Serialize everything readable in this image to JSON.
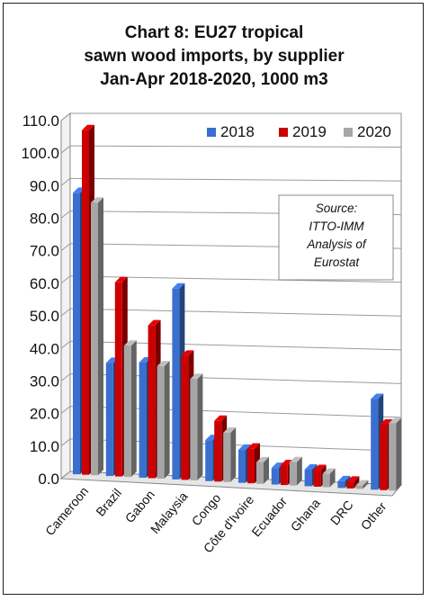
{
  "chart_data": {
    "type": "bar",
    "title": [
      "Chart 8: EU27 tropical",
      "sawn wood imports, by supplier",
      "Jan-Apr 2018-2020, 1000 m3"
    ],
    "categories": [
      "Cameroon",
      "Brazil",
      "Gabon",
      "Malaysia",
      "Congo",
      "Côte d'Ivoire",
      "Ecuador",
      "Ghana",
      "DRC",
      "Other"
    ],
    "series": [
      {
        "name": "2018",
        "color": "#3a6fcf",
        "values": [
          87.5,
          35.0,
          35.5,
          58.5,
          12.5,
          10.0,
          5.0,
          5.0,
          2.0,
          27.0
        ]
      },
      {
        "name": "2019",
        "color": "#cc0000",
        "values": [
          107.0,
          60.0,
          47.0,
          38.0,
          18.5,
          10.5,
          6.0,
          5.0,
          2.0,
          19.5
        ]
      },
      {
        "name": "2020",
        "color": "#a6a6a6",
        "values": [
          84.5,
          40.5,
          34.5,
          31.0,
          15.0,
          6.5,
          7.0,
          4.0,
          1.0,
          20.0
        ]
      }
    ],
    "ylim": [
      0,
      110
    ],
    "yticks": [
      "0.0",
      "10.0",
      "20.0",
      "30.0",
      "40.0",
      "50.0",
      "60.0",
      "70.0",
      "80.0",
      "90.0",
      "100.0",
      "110.0"
    ],
    "grid": true,
    "legend_position": "top-right",
    "annotation": [
      "Source:",
      "ITTO-IMM",
      "Analysis of",
      "Eurostat"
    ],
    "style": "3d-column"
  }
}
